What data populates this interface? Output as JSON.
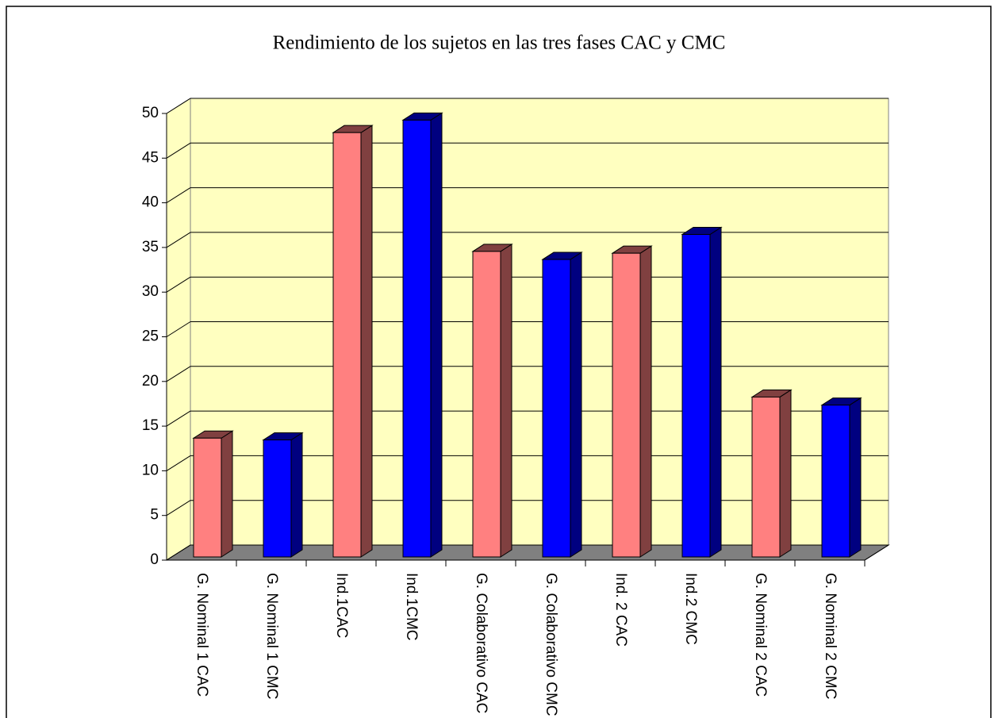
{
  "chart_data": {
    "type": "bar3d",
    "title": "Rendimiento de los sujetos en las tres fases CAC y CMC",
    "categories": [
      "G. Nominal 1 CAC",
      "G. Nominal 1 CMC",
      "Ind.1CAC",
      "Ind.1CMC",
      "G. Colaborativo CAC",
      "G. Colaborativo CMC",
      "Ind. 2 CAC",
      "Ind.2 CMC",
      "G. Nominal 2 CAC",
      "G. Nominal 2 CMC"
    ],
    "values": [
      13.3,
      13.1,
      47.5,
      48.9,
      34.2,
      33.3,
      34,
      36.1,
      17.9,
      17
    ],
    "colors": [
      "#ff8080",
      "#0000ff",
      "#ff8080",
      "#0000ff",
      "#ff8080",
      "#0000ff",
      "#ff8080",
      "#0000ff",
      "#ff8080",
      "#0000ff"
    ],
    "side_colors": [
      "#804040",
      "#000080",
      "#804040",
      "#000080",
      "#804040",
      "#000080",
      "#804040",
      "#000080",
      "#804040",
      "#000080"
    ],
    "wall_color": "#ffffc0",
    "floor_color": "#808080",
    "ylim": [
      0,
      50
    ],
    "yticks": [
      0,
      5,
      10,
      15,
      20,
      25,
      30,
      35,
      40,
      45,
      50
    ],
    "grid": true
  }
}
